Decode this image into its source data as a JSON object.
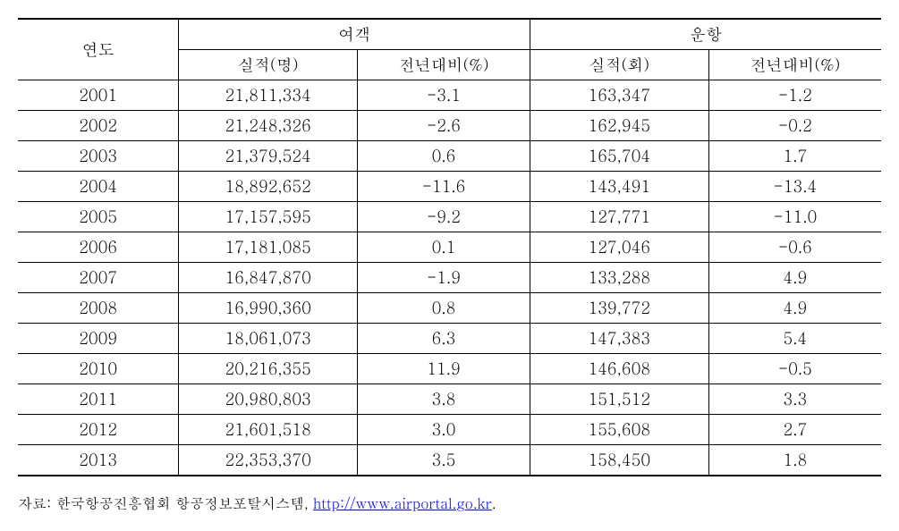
{
  "table": {
    "headers": {
      "year": "연도",
      "group1": "여객",
      "group2": "운항",
      "sub1": "실적(명)",
      "sub2": "전년대비(%)",
      "sub3": "실적(회)",
      "sub4": "전년대비(%)"
    },
    "rows": [
      {
        "year": "2001",
        "passengers": "21,811,334",
        "passengers_yoy": "-3.1",
        "flights": "163,347",
        "flights_yoy": "-1.2"
      },
      {
        "year": "2002",
        "passengers": "21,248,326",
        "passengers_yoy": "-2.6",
        "flights": "162,945",
        "flights_yoy": "-0.2"
      },
      {
        "year": "2003",
        "passengers": "21,379,524",
        "passengers_yoy": "0.6",
        "flights": "165,704",
        "flights_yoy": "1.7"
      },
      {
        "year": "2004",
        "passengers": "18,892,652",
        "passengers_yoy": "-11.6",
        "flights": "143,491",
        "flights_yoy": "-13.4"
      },
      {
        "year": "2005",
        "passengers": "17,157,595",
        "passengers_yoy": "-9.2",
        "flights": "127,771",
        "flights_yoy": "-11.0"
      },
      {
        "year": "2006",
        "passengers": "17,181,085",
        "passengers_yoy": "0.1",
        "flights": "127,046",
        "flights_yoy": "-0.6"
      },
      {
        "year": "2007",
        "passengers": "16,847,870",
        "passengers_yoy": "-1.9",
        "flights": "133,288",
        "flights_yoy": "4.9"
      },
      {
        "year": "2008",
        "passengers": "16,990,360",
        "passengers_yoy": "0.8",
        "flights": "139,772",
        "flights_yoy": "4.9"
      },
      {
        "year": "2009",
        "passengers": "18,061,073",
        "passengers_yoy": "6.3",
        "flights": "147,383",
        "flights_yoy": "5.4"
      },
      {
        "year": "2010",
        "passengers": "20,216,355",
        "passengers_yoy": "11.9",
        "flights": "146,608",
        "flights_yoy": "-0.5"
      },
      {
        "year": "2011",
        "passengers": "20,980,803",
        "passengers_yoy": "3.8",
        "flights": "151,512",
        "flights_yoy": "3.3"
      },
      {
        "year": "2012",
        "passengers": "21,601,518",
        "passengers_yoy": "3.0",
        "flights": "155,608",
        "flights_yoy": "2.7"
      },
      {
        "year": "2013",
        "passengers": "22,353,370",
        "passengers_yoy": "3.5",
        "flights": "158,450",
        "flights_yoy": "1.8"
      }
    ],
    "styling": {
      "border_color": "#000000",
      "top_border_width": 2,
      "bottom_border_width": 2,
      "row_border_width": 1,
      "font_size": 18,
      "background_color": "#ffffff",
      "text_align": "center",
      "col_widths": {
        "year": 180,
        "passengers": 200,
        "passengers_yoy": 193,
        "flights": 200,
        "flights_yoy": 193
      }
    }
  },
  "source": {
    "prefix": "자료: 한국항공진흥협회 항공정보포탈시스템, ",
    "link_text": "http://www.airportal.go.kr",
    "suffix": ".",
    "link_color": "#0000ff",
    "font_size": 16
  }
}
